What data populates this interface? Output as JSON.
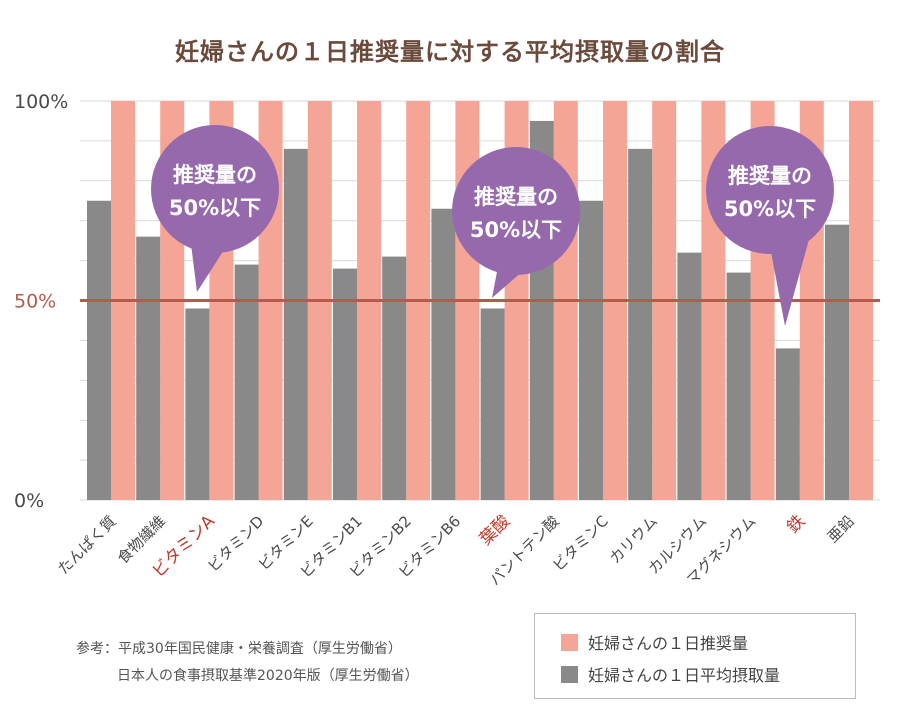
{
  "title": "妊婦さんの１日推奨量に対する平均摂取量の割合",
  "colors": {
    "recommended": "#f4a595",
    "intake": "#898989",
    "threshold_line": "#b55b4d",
    "highlight_label": "#c0392b",
    "bubble": "#9669ad",
    "grid": "#d9d9d9"
  },
  "chart_data": {
    "type": "bar",
    "title": "妊婦さんの１日推奨量に対する平均摂取量の割合",
    "categories": [
      "たんぱく質",
      "食物繊維",
      "ビタミンA",
      "ビタミンD",
      "ビタミンE",
      "ビタミンB1",
      "ビタミンB2",
      "ビタミンB6",
      "葉酸",
      "パントテン酸",
      "ビタミンC",
      "カリウム",
      "カルシウム",
      "マグネシウム",
      "鉄",
      "亜鉛"
    ],
    "highlighted": [
      "ビタミンA",
      "葉酸",
      "鉄"
    ],
    "series": [
      {
        "name": "妊婦さんの１日推奨量",
        "values": [
          100,
          100,
          100,
          100,
          100,
          100,
          100,
          100,
          100,
          100,
          100,
          100,
          100,
          100,
          100,
          100
        ]
      },
      {
        "name": "妊婦さんの１日平均摂取量",
        "values": [
          75,
          66,
          48,
          59,
          88,
          58,
          61,
          73,
          48,
          95,
          75,
          88,
          62,
          57,
          38,
          69
        ]
      }
    ],
    "yticks": [
      "100%",
      "50%",
      "0%"
    ],
    "ylim": [
      0,
      100
    ],
    "reference_line": 50,
    "grid": true,
    "legend_position": "bottom-right"
  },
  "callouts": [
    {
      "line1": "推奨量の",
      "line2": "50%以下"
    },
    {
      "line1": "推奨量の",
      "line2": "50%以下"
    },
    {
      "line1": "推奨量の",
      "line2": "50%以下"
    }
  ],
  "notes": {
    "line1": "参考：平成30年国民健康・栄養調査（厚生労働省）",
    "line2": "日本人の食事摂取基準2020年版（厚生労働省）"
  },
  "legend": {
    "recommended": "妊婦さんの１日推奨量",
    "intake": "妊婦さんの１日平均摂取量"
  }
}
